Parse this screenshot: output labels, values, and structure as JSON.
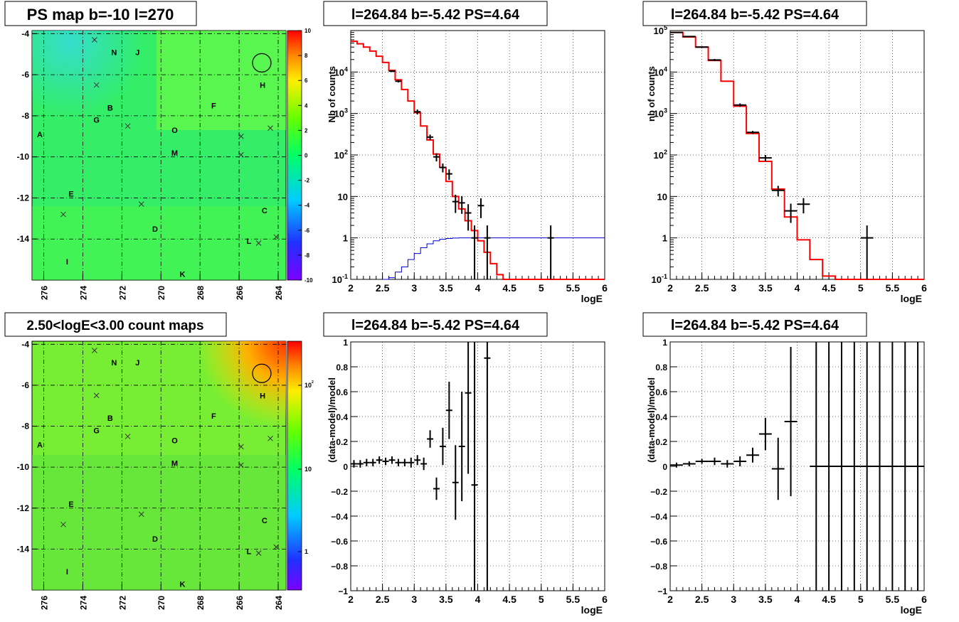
{
  "colors": {
    "model_line": "#ff0000",
    "cutoff_line": "#0000cc",
    "data_points": "#000000",
    "grid": "#000000"
  },
  "map_source_labels": [
    {
      "label": "N",
      "l": 272.4,
      "b": -4.9
    },
    {
      "label": "J",
      "l": 271.2,
      "b": -4.9
    },
    {
      "label": "H",
      "l": 264.8,
      "b": -6.5
    },
    {
      "label": "B",
      "l": 272.6,
      "b": -7.6
    },
    {
      "label": "G",
      "l": 273.3,
      "b": -8.2
    },
    {
      "label": "F",
      "l": 267.3,
      "b": -7.5
    },
    {
      "label": "O",
      "l": 269.3,
      "b": -8.7
    },
    {
      "label": "A",
      "l": 276.2,
      "b": -8.9
    },
    {
      "label": "M",
      "l": 269.3,
      "b": -9.8
    },
    {
      "label": "E",
      "l": 274.6,
      "b": -11.8
    },
    {
      "label": "C",
      "l": 264.7,
      "b": -12.6
    },
    {
      "label": "D",
      "l": 270.3,
      "b": -13.5
    },
    {
      "label": "L",
      "l": 265.5,
      "b": -14.1
    },
    {
      "label": "I",
      "l": 274.8,
      "b": -15.1
    },
    {
      "label": "K",
      "l": 268.9,
      "b": -15.7
    }
  ],
  "map_crosses": [
    {
      "l": 273.4,
      "b": -4.3
    },
    {
      "l": 273.3,
      "b": -6.5
    },
    {
      "l": 271.7,
      "b": -8.5
    },
    {
      "l": 265.9,
      "b": -9.0
    },
    {
      "l": 264.4,
      "b": -8.6
    },
    {
      "l": 265.9,
      "b": -9.9
    },
    {
      "l": 275.0,
      "b": -12.8
    },
    {
      "l": 271.0,
      "b": -12.3
    },
    {
      "l": 265.0,
      "b": -14.2
    },
    {
      "l": 264.1,
      "b": -13.9
    }
  ],
  "map_circle": {
    "l": 264.84,
    "b": -5.42
  },
  "top_map": {
    "title": "PS map b=-10 l=270",
    "x_ticks": [
      "276",
      "274",
      "272",
      "270",
      "268",
      "266",
      "264"
    ],
    "y_ticks": [
      "-4",
      "-6",
      "-8",
      "-10",
      "-12",
      "-14"
    ],
    "colorbar_ticks": [
      "10",
      "8",
      "6",
      "4",
      "2",
      "0",
      "-2",
      "-4",
      "-6",
      "-8",
      "-10"
    ]
  },
  "bottom_map": {
    "title": "2.50<logE<3.00 count maps",
    "x_ticks": [
      "276",
      "274",
      "272",
      "270",
      "268",
      "266",
      "264"
    ],
    "y_ticks": [
      "-4",
      "-6",
      "-8",
      "-10",
      "-12",
      "-14"
    ],
    "colorbar_ticks": [
      {
        "t": "10",
        "s": "2"
      },
      {
        "t": "10",
        "s": ""
      },
      {
        "t": "1",
        "s": ""
      }
    ]
  },
  "chart_data": [
    {
      "type": "line",
      "title": "l=264.84 b=-5.42 PS=4.64",
      "xlabel": "logE",
      "ylabel": "Nb of counts",
      "xlim": [
        2,
        6
      ],
      "ylim": [
        0.1,
        100000
      ],
      "log_y": true,
      "grid": true,
      "x_ticks": [
        "2",
        "2.5",
        "3",
        "3.5",
        "4",
        "4.5",
        "5",
        "5.5",
        "6"
      ],
      "y_ticks": [
        {
          "t": "10",
          "s": "-1"
        },
        {
          "t": "1",
          "s": ""
        },
        {
          "t": "10",
          "s": ""
        },
        {
          "t": "10",
          "s": "2"
        },
        {
          "t": "10",
          "s": "3"
        },
        {
          "t": "10",
          "s": "4"
        }
      ],
      "bin_width": 0.1,
      "model_step_x": [
        2.0,
        2.1,
        2.2,
        2.3,
        2.4,
        2.5,
        2.6,
        2.7,
        2.8,
        2.9,
        3.0,
        3.1,
        3.2,
        3.3,
        3.4,
        3.5,
        3.6,
        3.7,
        3.8,
        3.9,
        4.0,
        4.1,
        4.2,
        4.3,
        4.4
      ],
      "model_step_y": [
        55000,
        48000,
        40000,
        32000,
        24000,
        17000,
        11000,
        6500,
        3800,
        2000,
        1050,
        500,
        230,
        105,
        50,
        23,
        10,
        5,
        2.6,
        1.5,
        0.85,
        0.45,
        0.24,
        0.13,
        0.1
      ],
      "cutoff_step_x": [
        2.5,
        2.6,
        2.7,
        2.8,
        2.9,
        3.0,
        3.1,
        3.2,
        3.3,
        3.4,
        3.5,
        3.6,
        3.7,
        3.8,
        6.0
      ],
      "cutoff_step_y": [
        0.1,
        0.11,
        0.15,
        0.2,
        0.3,
        0.42,
        0.58,
        0.72,
        0.85,
        0.93,
        0.97,
        0.99,
        1.0,
        1.0,
        1.0
      ],
      "points": [
        {
          "x": 2.65,
          "y": 10500,
          "err": 500
        },
        {
          "x": 2.75,
          "y": 6000,
          "err": 400
        },
        {
          "x": 3.05,
          "y": 1100,
          "err": 150
        },
        {
          "x": 3.25,
          "y": 270,
          "err": 40
        },
        {
          "x": 3.35,
          "y": 90,
          "err": 20
        },
        {
          "x": 3.45,
          "y": 50,
          "err": 12
        },
        {
          "x": 3.55,
          "y": 35,
          "err": 10
        },
        {
          "x": 3.65,
          "y": 7.5,
          "err": 3.5
        },
        {
          "x": 3.75,
          "y": 7,
          "err": 3.2
        },
        {
          "x": 3.85,
          "y": 4,
          "err": 2.5
        },
        {
          "x": 4.05,
          "y": 6,
          "err": 3
        },
        {
          "x": 3.95,
          "y": 1,
          "err": 1.0
        },
        {
          "x": 4.15,
          "y": 1,
          "err": 1.0
        },
        {
          "x": 5.15,
          "y": 1,
          "err": 1.0
        }
      ]
    },
    {
      "type": "line",
      "title": "l=264.84 b=-5.42 PS=4.64",
      "xlabel": "logE",
      "ylabel": "nb of counts",
      "xlim": [
        2,
        6
      ],
      "ylim": [
        0.1,
        100000
      ],
      "log_y": true,
      "grid": true,
      "x_ticks": [
        "2",
        "2.5",
        "3",
        "3.5",
        "4",
        "4.5",
        "5",
        "5.5",
        "6"
      ],
      "y_ticks": [
        {
          "t": "10",
          "s": "-1"
        },
        {
          "t": "1",
          "s": ""
        },
        {
          "t": "10",
          "s": ""
        },
        {
          "t": "10",
          "s": "2"
        },
        {
          "t": "10",
          "s": "3"
        },
        {
          "t": "10",
          "s": "4"
        },
        {
          "t": "10",
          "s": "5"
        }
      ],
      "bin_width": 0.2,
      "model_step_x": [
        2.0,
        2.2,
        2.4,
        2.6,
        2.8,
        3.0,
        3.2,
        3.4,
        3.6,
        3.8,
        4.0,
        4.2,
        4.4,
        4.6
      ],
      "model_step_y": [
        90000,
        70000,
        40000,
        19000,
        6000,
        1500,
        330,
        70,
        15,
        3.2,
        0.9,
        0.3,
        0.12,
        0.1
      ],
      "points": [
        {
          "x": 2.1,
          "y": 90000,
          "err": 3000
        },
        {
          "x": 2.3,
          "y": 72000,
          "err": 2500
        },
        {
          "x": 2.5,
          "y": 40000,
          "err": 2000
        },
        {
          "x": 2.7,
          "y": 19500,
          "err": 1200
        },
        {
          "x": 3.1,
          "y": 1600,
          "err": 150
        },
        {
          "x": 3.3,
          "y": 350,
          "err": 30
        },
        {
          "x": 3.5,
          "y": 85,
          "err": 15
        },
        {
          "x": 3.7,
          "y": 14,
          "err": 4
        },
        {
          "x": 3.9,
          "y": 4.5,
          "err": 2.2
        },
        {
          "x": 4.1,
          "y": 6.5,
          "err": 2.6
        },
        {
          "x": 5.1,
          "y": 1,
          "err": 1.0
        }
      ]
    },
    {
      "type": "scatter",
      "title": "l=264.84 b=-5.42 PS=4.64",
      "xlabel": "logE",
      "ylabel": "(data-model)/model",
      "xlim": [
        2,
        6
      ],
      "ylim": [
        -1,
        1
      ],
      "grid": true,
      "x_ticks": [
        "2",
        "2.5",
        "3",
        "3.5",
        "4",
        "4.5",
        "5",
        "5.5",
        "6"
      ],
      "y_ticks": [
        "-1",
        "-0.8",
        "-0.6",
        "-0.4",
        "-0.2",
        "0",
        "0.2",
        "0.4",
        "0.6",
        "0.8",
        "1"
      ],
      "bin_width": 0.1,
      "points": [
        {
          "x": 2.05,
          "y": 0.02,
          "err": 0.03
        },
        {
          "x": 2.15,
          "y": 0.02,
          "err": 0.03
        },
        {
          "x": 2.25,
          "y": 0.03,
          "err": 0.03
        },
        {
          "x": 2.35,
          "y": 0.03,
          "err": 0.03
        },
        {
          "x": 2.45,
          "y": 0.05,
          "err": 0.03
        },
        {
          "x": 2.55,
          "y": 0.04,
          "err": 0.03
        },
        {
          "x": 2.65,
          "y": 0.05,
          "err": 0.03
        },
        {
          "x": 2.75,
          "y": 0.03,
          "err": 0.03
        },
        {
          "x": 2.85,
          "y": 0.03,
          "err": 0.03
        },
        {
          "x": 2.95,
          "y": 0.03,
          "err": 0.04
        },
        {
          "x": 3.05,
          "y": 0.05,
          "err": 0.04
        },
        {
          "x": 3.15,
          "y": 0.02,
          "err": 0.05
        },
        {
          "x": 3.25,
          "y": 0.22,
          "err": 0.07
        },
        {
          "x": 3.35,
          "y": -0.18,
          "err": 0.09
        },
        {
          "x": 3.45,
          "y": 0.16,
          "err": 0.15
        },
        {
          "x": 3.55,
          "y": 0.45,
          "err": 0.23
        },
        {
          "x": 3.65,
          "y": -0.13,
          "err": 0.3
        },
        {
          "x": 3.75,
          "y": 0.16,
          "err": 0.44
        },
        {
          "x": 3.85,
          "y": 0.59,
          "err": 0.65
        },
        {
          "x": 3.95,
          "y": -0.15,
          "err": 1.3
        },
        {
          "x": 4.15,
          "y": 0.87,
          "err": 1.9
        }
      ]
    },
    {
      "type": "scatter",
      "title": "l=264.84 b=-5.42 PS=4.64",
      "xlabel": "logE",
      "ylabel": "(data-model)/model",
      "xlim": [
        2,
        6
      ],
      "ylim": [
        -1,
        1
      ],
      "grid": true,
      "x_ticks": [
        "2",
        "2.5",
        "3",
        "3.5",
        "4",
        "4.5",
        "5",
        "5.5",
        "6"
      ],
      "y_ticks": [
        "-1",
        "-0.8",
        "-0.6",
        "-0.4",
        "-0.2",
        "0",
        "0.2",
        "0.4",
        "0.6",
        "0.8",
        "1"
      ],
      "bin_width": 0.2,
      "points": [
        {
          "x": 2.1,
          "y": 0.01,
          "err": 0.02
        },
        {
          "x": 2.3,
          "y": 0.02,
          "err": 0.02
        },
        {
          "x": 2.5,
          "y": 0.04,
          "err": 0.02
        },
        {
          "x": 2.7,
          "y": 0.04,
          "err": 0.03
        },
        {
          "x": 2.9,
          "y": 0.02,
          "err": 0.03
        },
        {
          "x": 3.1,
          "y": 0.04,
          "err": 0.04
        },
        {
          "x": 3.3,
          "y": 0.09,
          "err": 0.06
        },
        {
          "x": 3.5,
          "y": 0.26,
          "err": 0.13
        },
        {
          "x": 3.7,
          "y": -0.02,
          "err": 0.25
        },
        {
          "x": 3.9,
          "y": 0.36,
          "err": 0.6
        },
        {
          "x": 4.3,
          "y": 0,
          "err": 2.0
        },
        {
          "x": 4.5,
          "y": 0,
          "err": 2.0
        },
        {
          "x": 4.7,
          "y": 0,
          "err": 2.0
        },
        {
          "x": 4.9,
          "y": 0,
          "err": 2.0
        },
        {
          "x": 5.1,
          "y": 0,
          "err": 2.0
        },
        {
          "x": 5.3,
          "y": 0,
          "err": 2.0
        },
        {
          "x": 5.5,
          "y": 0,
          "err": 2.0
        },
        {
          "x": 5.7,
          "y": 0,
          "err": 2.0
        },
        {
          "x": 5.9,
          "y": 0,
          "err": 2.0
        }
      ]
    }
  ]
}
